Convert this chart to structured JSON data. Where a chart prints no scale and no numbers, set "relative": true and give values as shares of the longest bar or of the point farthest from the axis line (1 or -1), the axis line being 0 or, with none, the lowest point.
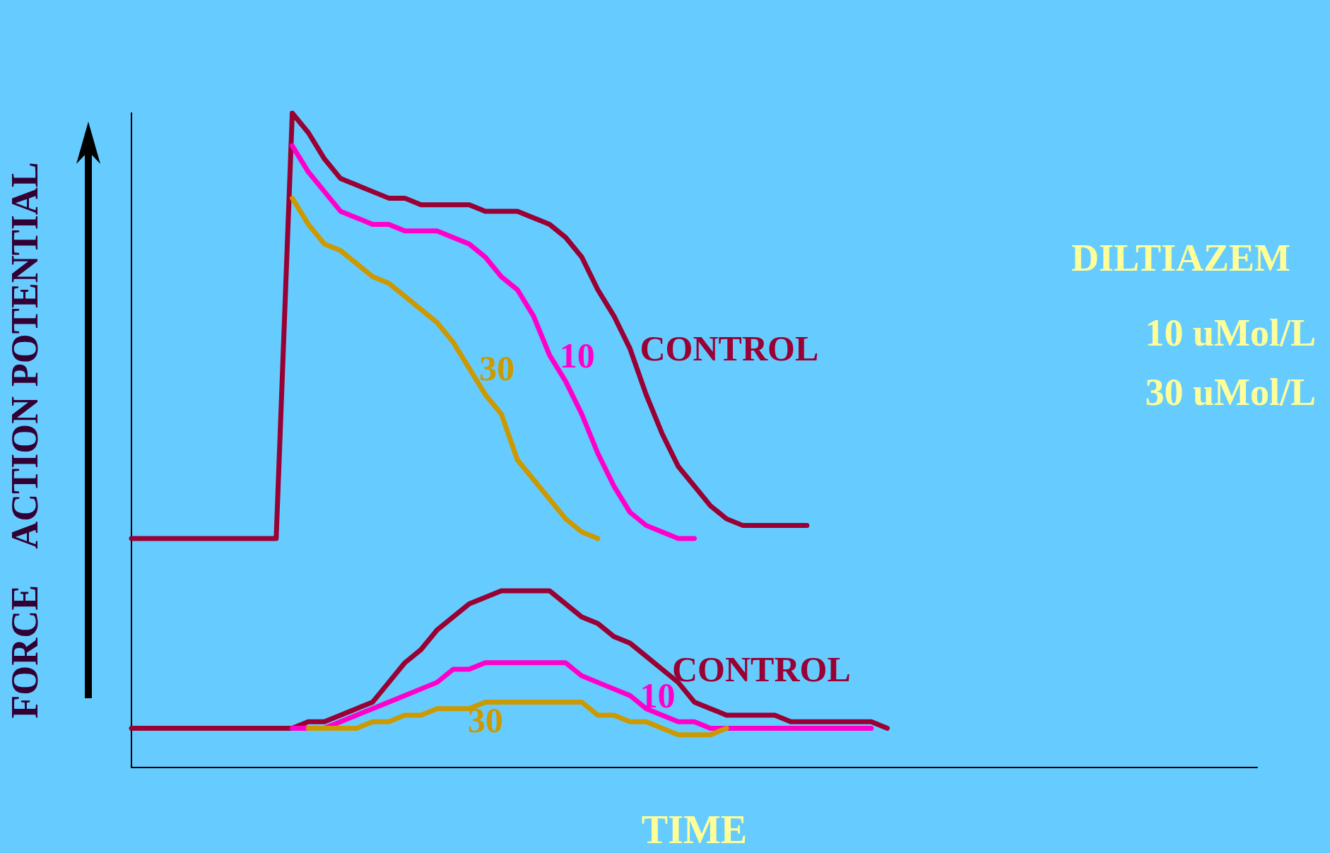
{
  "chart_data": {
    "type": "line",
    "relative": true,
    "xlabel": "TIME",
    "ylabel": "FORCE    ACTION POTENTIAL",
    "annotations": [
      "DILTIAZEM",
      "10 uMol/L",
      "30 uMol/L"
    ],
    "categories": [
      null,
      null,
      null,
      null,
      null,
      null,
      null,
      null,
      null,
      null,
      null,
      null,
      null,
      null,
      null,
      null,
      null,
      null,
      null,
      null,
      null,
      null,
      null,
      null,
      null,
      null,
      null,
      null,
      null,
      null,
      null,
      null,
      null,
      null,
      null,
      null,
      null,
      null,
      null,
      null,
      null,
      null,
      null,
      null,
      null,
      null,
      null,
      null,
      null,
      null,
      null,
      null,
      null,
      null,
      null,
      null,
      null,
      null,
      null,
      null,
      null,
      null,
      null,
      null,
      null,
      null,
      null,
      null,
      null,
      null,
      null
    ],
    "series": [
      {
        "name": "CONTROL",
        "color": "#990033",
        "values": [
          0.35,
          0.35,
          0.35,
          0.35,
          0.35,
          0.35,
          0.35,
          0.35,
          0.35,
          0.35,
          1.0,
          0.97,
          0.93,
          0.9,
          0.89,
          0.88,
          0.87,
          0.87,
          0.86,
          0.86,
          0.86,
          0.86,
          0.85,
          0.85,
          0.85,
          0.84,
          0.83,
          0.81,
          0.78,
          0.73,
          0.69,
          0.64,
          0.57,
          0.51,
          0.46,
          0.43,
          0.4,
          0.38,
          0.37,
          0.37,
          0.37,
          0.37,
          0.37,
          null,
          null,
          null,
          null,
          null,
          null,
          null,
          null,
          null,
          null,
          null,
          null,
          null,
          null,
          null,
          null,
          null,
          null,
          null,
          null,
          null,
          null,
          null,
          null,
          null,
          null,
          null,
          null
        ]
      },
      {
        "name": "10",
        "color": "#ff00cc",
        "values": [
          null,
          null,
          null,
          null,
          null,
          null,
          null,
          null,
          null,
          null,
          0.95,
          0.91,
          0.88,
          0.85,
          0.84,
          0.83,
          0.83,
          0.82,
          0.82,
          0.82,
          0.81,
          0.8,
          0.78,
          0.75,
          0.73,
          0.69,
          0.63,
          0.59,
          0.54,
          0.48,
          0.43,
          0.39,
          0.37,
          0.36,
          0.35,
          0.35,
          null,
          null,
          null,
          null,
          null,
          null,
          null,
          null,
          null,
          null,
          null,
          null,
          null,
          null,
          null,
          null,
          null,
          null,
          null,
          null,
          null,
          null,
          null,
          null,
          null,
          null,
          null,
          null,
          null,
          null,
          null,
          null,
          null,
          null,
          null
        ]
      },
      {
        "name": "30",
        "color": "#cc9900",
        "values": [
          null,
          null,
          null,
          null,
          null,
          null,
          null,
          null,
          null,
          null,
          0.87,
          0.83,
          0.8,
          0.79,
          0.77,
          0.75,
          0.74,
          0.72,
          0.7,
          0.68,
          0.65,
          0.61,
          0.57,
          0.54,
          0.47,
          0.44,
          0.41,
          0.38,
          0.36,
          0.35,
          null,
          null,
          null,
          null,
          null,
          null,
          null,
          null,
          null,
          null,
          null,
          null,
          null,
          null,
          null,
          null,
          null,
          null,
          null,
          null,
          null,
          null,
          null,
          null,
          null,
          null,
          null,
          null,
          null,
          null,
          null,
          null,
          null,
          null,
          null,
          null,
          null,
          null,
          null,
          null,
          null
        ]
      },
      {
        "name": "CONTROL",
        "color": "#990033",
        "values": [
          0.06,
          0.06,
          0.06,
          0.06,
          0.06,
          0.06,
          0.06,
          0.06,
          0.06,
          0.06,
          0.06,
          0.07,
          0.07,
          0.08,
          0.09,
          0.1,
          0.13,
          0.16,
          0.18,
          0.21,
          0.23,
          0.25,
          0.26,
          0.27,
          0.27,
          0.27,
          0.27,
          0.25,
          0.23,
          0.22,
          0.2,
          0.19,
          0.17,
          0.15,
          0.13,
          0.1,
          0.09,
          0.08,
          0.08,
          0.08,
          0.08,
          0.07,
          0.07,
          0.07,
          0.07,
          0.07,
          0.07,
          0.06,
          null,
          null,
          null,
          null,
          null,
          null,
          null,
          null,
          null,
          null,
          null,
          null,
          null,
          null,
          null,
          null,
          null,
          null,
          null,
          null,
          null,
          null,
          null
        ]
      },
      {
        "name": "10",
        "color": "#ff00cc",
        "values": [
          null,
          null,
          null,
          null,
          null,
          null,
          null,
          null,
          null,
          null,
          0.06,
          0.06,
          0.06,
          0.07,
          0.08,
          0.09,
          0.1,
          0.11,
          0.12,
          0.13,
          0.15,
          0.15,
          0.16,
          0.16,
          0.16,
          0.16,
          0.16,
          0.16,
          0.14,
          0.13,
          0.12,
          0.11,
          0.09,
          0.08,
          0.07,
          0.07,
          0.06,
          0.06,
          0.06,
          0.06,
          0.06,
          0.06,
          0.06,
          0.06,
          0.06,
          0.06,
          0.06,
          null,
          null,
          null,
          null,
          null,
          null,
          null,
          null,
          null,
          null,
          null,
          null,
          null,
          null,
          null,
          null,
          null,
          null,
          null,
          null,
          null,
          null,
          null,
          null
        ]
      },
      {
        "name": "30",
        "color": "#cc9900",
        "values": [
          null,
          null,
          null,
          null,
          null,
          null,
          null,
          null,
          null,
          null,
          null,
          0.06,
          0.06,
          0.06,
          0.06,
          0.07,
          0.07,
          0.08,
          0.08,
          0.09,
          0.09,
          0.09,
          0.1,
          0.1,
          0.1,
          0.1,
          0.1,
          0.1,
          0.1,
          0.08,
          0.08,
          0.07,
          0.07,
          0.06,
          0.05,
          0.05,
          0.05,
          0.06,
          null,
          null,
          null,
          null,
          null,
          null,
          null,
          null,
          null,
          null,
          null,
          null,
          null,
          null,
          null,
          null,
          null,
          null,
          null,
          null,
          null,
          null,
          null,
          null,
          null,
          null,
          null,
          null,
          null,
          null,
          null,
          null,
          null
        ]
      }
    ]
  }
}
